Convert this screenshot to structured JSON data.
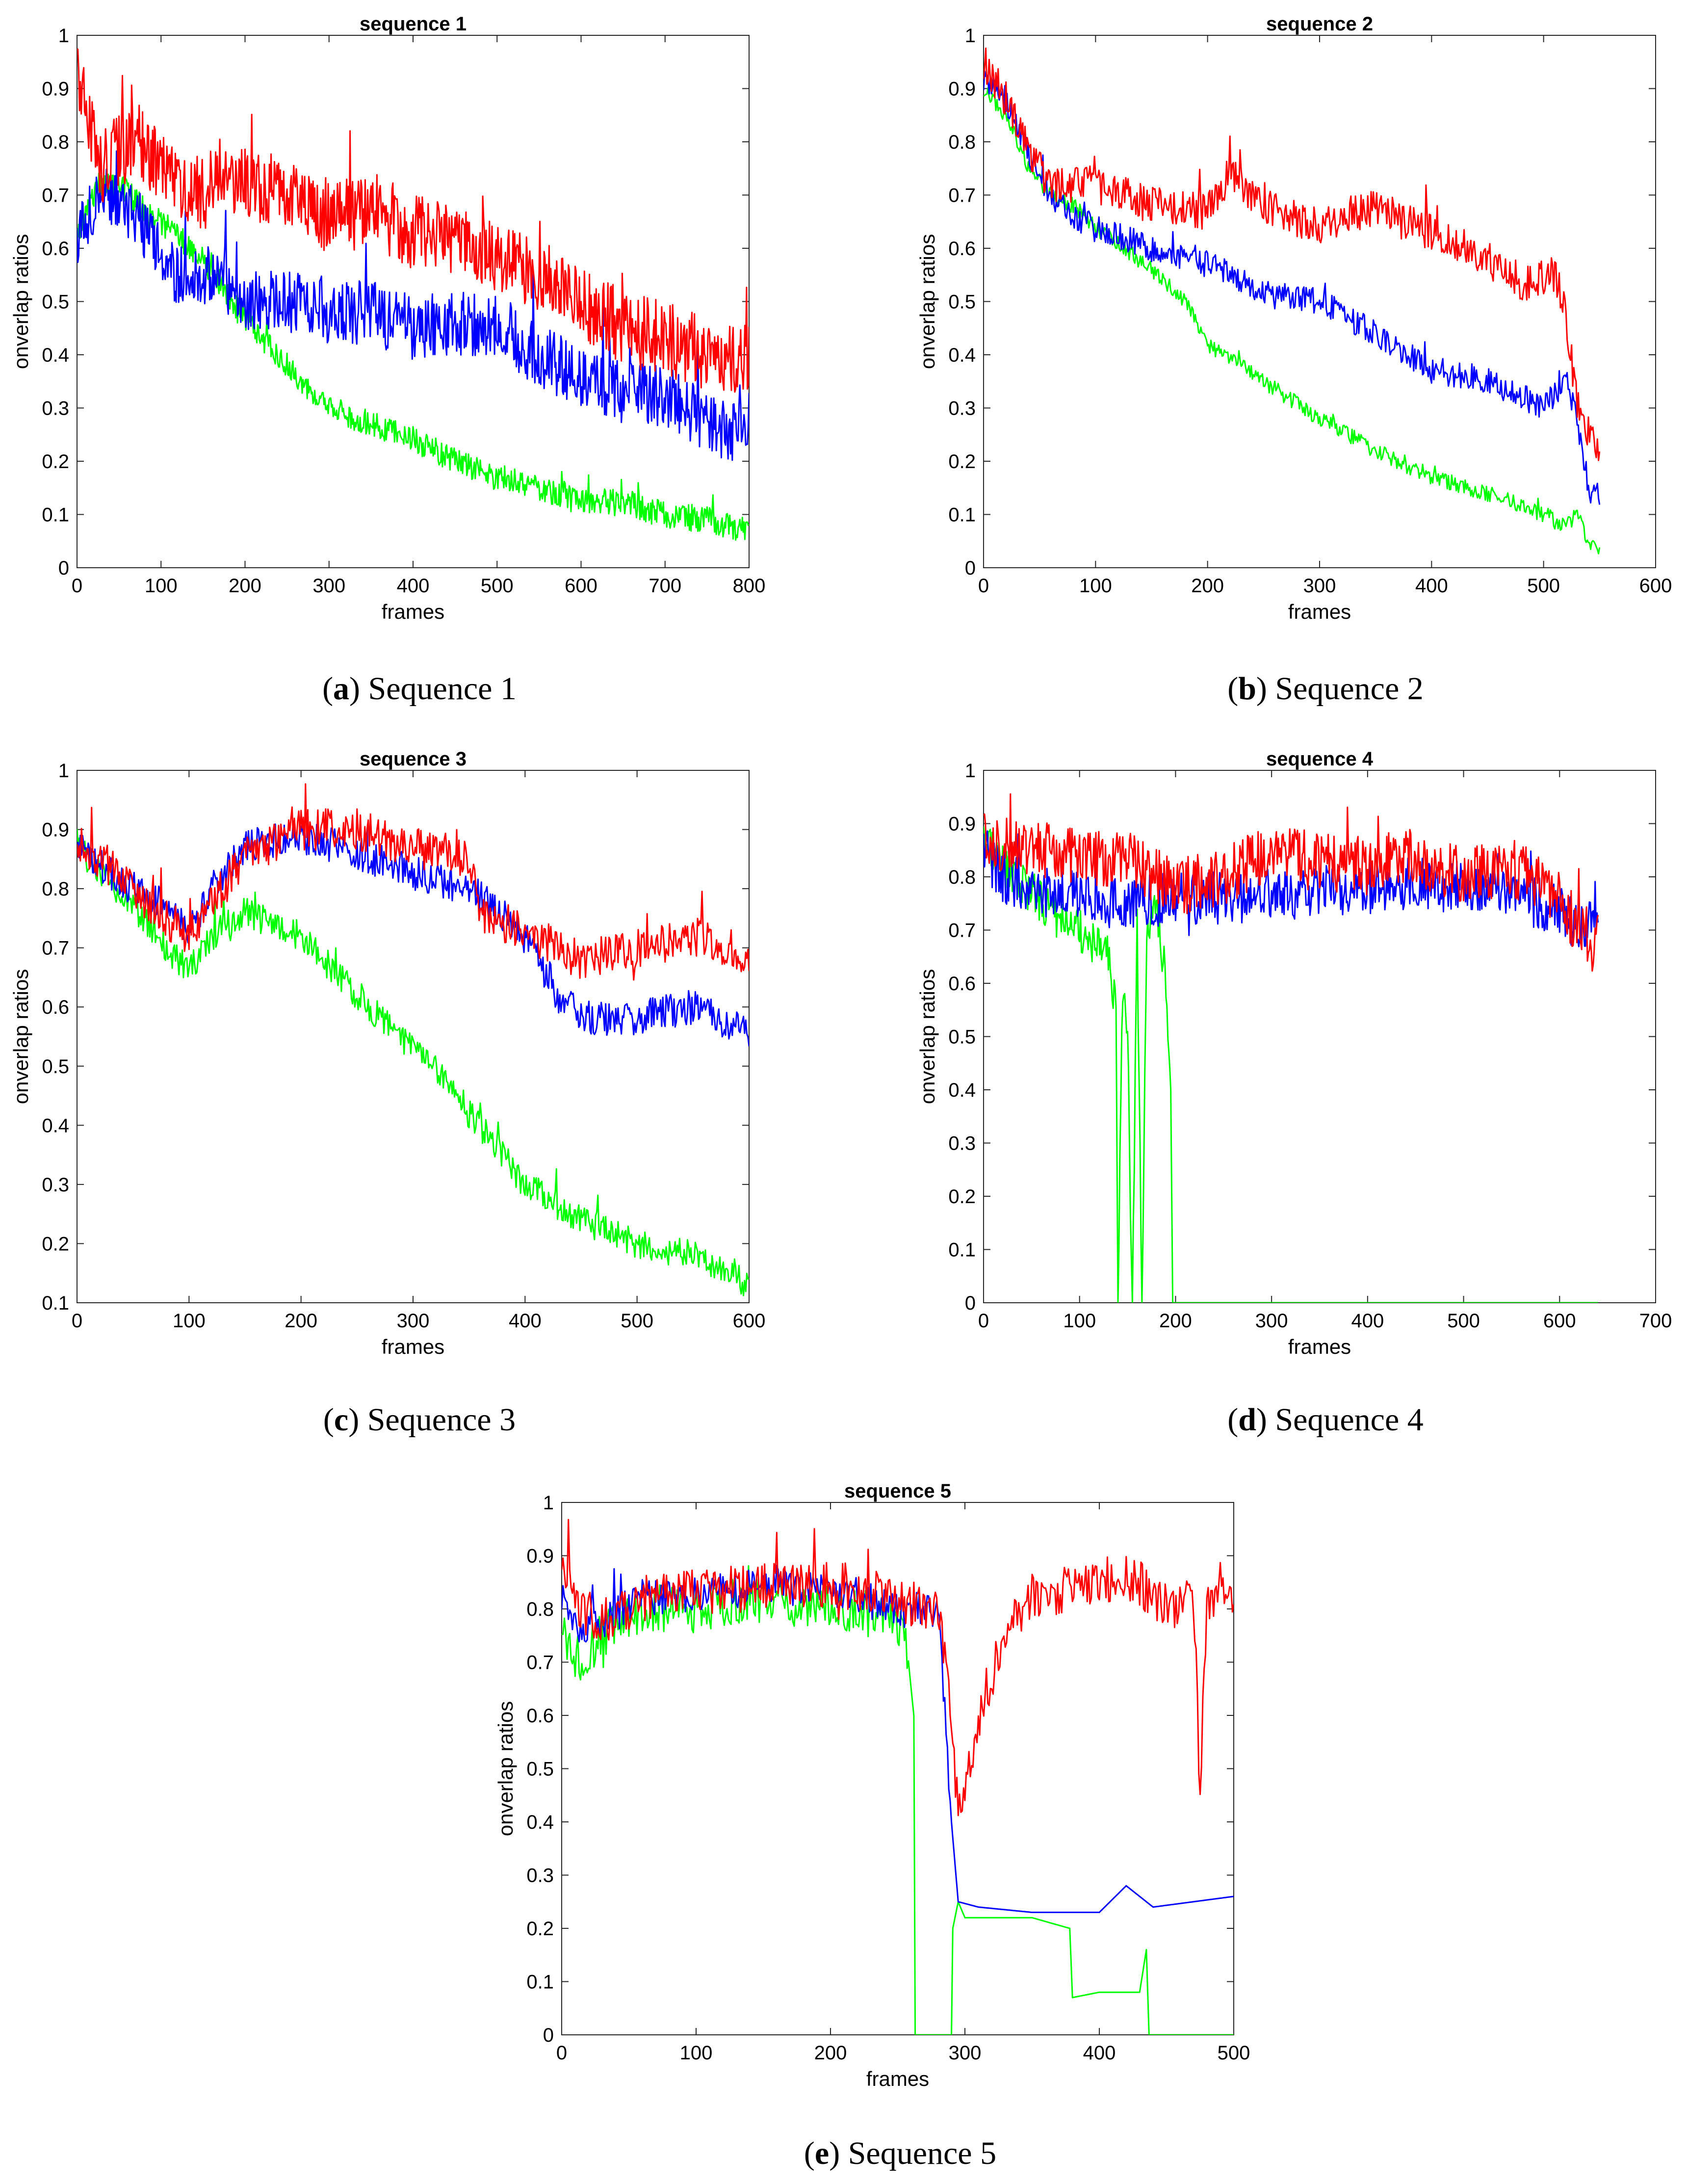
{
  "figure": {
    "series_colors": {
      "red": "#ff0000",
      "blue": "#0000ff",
      "green": "#00ff00"
    }
  },
  "chart_data": [
    {
      "type": "line",
      "title": "sequence 1",
      "caption_letter": "a",
      "caption_text": "Sequence 1",
      "xlabel": "frames",
      "ylabel": "onverlap ratios",
      "xlim": [
        0,
        800
      ],
      "ylim": [
        0,
        1
      ],
      "xticks": [
        0,
        100,
        200,
        300,
        400,
        500,
        600,
        700,
        800
      ],
      "yticks": [
        0,
        0.1,
        0.2,
        0.3,
        0.4,
        0.5,
        0.6,
        0.7,
        0.8,
        0.9,
        1
      ],
      "series": [
        {
          "name": "red",
          "color": "#ff0000",
          "x": [
            0,
            25,
            50,
            75,
            100,
            125,
            150,
            175,
            200,
            250,
            300,
            350,
            400,
            450,
            500,
            550,
            600,
            650,
            700,
            750,
            800
          ],
          "values": [
            0.95,
            0.75,
            0.78,
            0.8,
            0.75,
            0.72,
            0.7,
            0.75,
            0.72,
            0.7,
            0.66,
            0.67,
            0.63,
            0.62,
            0.58,
            0.55,
            0.5,
            0.45,
            0.43,
            0.4,
            0.4
          ],
          "noise": 0.07
        },
        {
          "name": "blue",
          "color": "#0000ff",
          "x": [
            0,
            25,
            50,
            75,
            100,
            125,
            150,
            200,
            250,
            300,
            350,
            400,
            450,
            500,
            550,
            600,
            650,
            700,
            750,
            800
          ],
          "values": [
            0.62,
            0.7,
            0.68,
            0.65,
            0.58,
            0.55,
            0.55,
            0.5,
            0.5,
            0.48,
            0.48,
            0.45,
            0.46,
            0.45,
            0.4,
            0.36,
            0.33,
            0.32,
            0.28,
            0.24
          ],
          "noise": 0.06
        },
        {
          "name": "green",
          "color": "#00ff00",
          "x": [
            0,
            25,
            50,
            75,
            100,
            150,
            200,
            250,
            300,
            350,
            400,
            450,
            500,
            550,
            600,
            650,
            700,
            750,
            800
          ],
          "values": [
            0.62,
            0.72,
            0.72,
            0.68,
            0.65,
            0.58,
            0.47,
            0.38,
            0.3,
            0.27,
            0.24,
            0.2,
            0.17,
            0.15,
            0.13,
            0.12,
            0.1,
            0.09,
            0.07
          ],
          "noise": 0.025
        }
      ]
    },
    {
      "type": "line",
      "title": "sequence 2",
      "caption_letter": "b",
      "caption_text": "Sequence 2",
      "xlabel": "frames",
      "ylabel": "onverlap ratios",
      "xlim": [
        0,
        600
      ],
      "ylim": [
        0,
        1
      ],
      "xticks": [
        0,
        100,
        200,
        300,
        400,
        500,
        600
      ],
      "yticks": [
        0,
        0.1,
        0.2,
        0.3,
        0.4,
        0.5,
        0.6,
        0.7,
        0.8,
        0.9,
        1
      ],
      "series": [
        {
          "name": "red",
          "color": "#ff0000",
          "x": [
            0,
            20,
            40,
            60,
            80,
            100,
            150,
            200,
            220,
            250,
            300,
            350,
            400,
            450,
            480,
            510,
            520,
            530,
            540,
            550
          ],
          "values": [
            0.95,
            0.88,
            0.78,
            0.72,
            0.72,
            0.72,
            0.68,
            0.67,
            0.74,
            0.68,
            0.64,
            0.68,
            0.63,
            0.58,
            0.53,
            0.55,
            0.48,
            0.3,
            0.25,
            0.2
          ],
          "noise": 0.035
        },
        {
          "name": "blue",
          "color": "#0000ff",
          "x": [
            0,
            20,
            40,
            60,
            80,
            100,
            150,
            200,
            250,
            300,
            350,
            400,
            450,
            500,
            520,
            530,
            540,
            550
          ],
          "values": [
            0.92,
            0.88,
            0.78,
            0.7,
            0.66,
            0.64,
            0.6,
            0.57,
            0.52,
            0.5,
            0.44,
            0.37,
            0.35,
            0.3,
            0.35,
            0.28,
            0.15,
            0.12
          ],
          "noise": 0.025
        },
        {
          "name": "green",
          "color": "#00ff00",
          "x": [
            0,
            20,
            40,
            60,
            80,
            100,
            150,
            180,
            200,
            250,
            300,
            350,
            400,
            450,
            500,
            520,
            530,
            540,
            550
          ],
          "values": [
            0.9,
            0.85,
            0.75,
            0.7,
            0.68,
            0.64,
            0.56,
            0.5,
            0.42,
            0.35,
            0.28,
            0.22,
            0.17,
            0.14,
            0.1,
            0.08,
            0.1,
            0.05,
            0.04
          ],
          "noise": 0.015
        }
      ]
    },
    {
      "type": "line",
      "title": "sequence 3",
      "caption_letter": "c",
      "caption_text": "Sequence 3",
      "xlabel": "frames",
      "ylabel": "onverlap ratios",
      "xlim": [
        0,
        600
      ],
      "ylim": [
        0.1,
        1
      ],
      "xticks": [
        0,
        100,
        200,
        300,
        400,
        500,
        600
      ],
      "yticks": [
        0.1,
        0.2,
        0.3,
        0.4,
        0.5,
        0.6,
        0.7,
        0.8,
        0.9,
        1
      ],
      "series": [
        {
          "name": "red",
          "color": "#ff0000",
          "x": [
            0,
            20,
            50,
            80,
            100,
            120,
            150,
            200,
            250,
            300,
            350,
            360,
            400,
            450,
            500,
            550,
            600
          ],
          "values": [
            0.88,
            0.85,
            0.8,
            0.75,
            0.72,
            0.78,
            0.85,
            0.9,
            0.9,
            0.87,
            0.85,
            0.76,
            0.73,
            0.68,
            0.7,
            0.72,
            0.68
          ],
          "noise": 0.035
        },
        {
          "name": "blue",
          "color": "#0000ff",
          "x": [
            0,
            20,
            50,
            80,
            100,
            120,
            150,
            200,
            250,
            300,
            350,
            400,
            430,
            450,
            500,
            550,
            600
          ],
          "values": [
            0.88,
            0.84,
            0.8,
            0.77,
            0.73,
            0.8,
            0.87,
            0.89,
            0.86,
            0.83,
            0.8,
            0.72,
            0.62,
            0.58,
            0.58,
            0.6,
            0.56
          ],
          "noise": 0.03
        },
        {
          "name": "green",
          "color": "#00ff00",
          "x": [
            0,
            20,
            50,
            80,
            100,
            120,
            150,
            200,
            250,
            300,
            330,
            350,
            380,
            400,
            450,
            500,
            550,
            600
          ],
          "values": [
            0.87,
            0.83,
            0.77,
            0.7,
            0.66,
            0.72,
            0.76,
            0.72,
            0.62,
            0.53,
            0.48,
            0.42,
            0.35,
            0.3,
            0.24,
            0.2,
            0.18,
            0.13
          ],
          "noise": 0.025
        }
      ]
    },
    {
      "type": "line",
      "title": "sequence 4",
      "caption_letter": "d",
      "caption_text": "Sequence 4",
      "xlabel": "frames",
      "ylabel": "onverlap ratios",
      "xlim": [
        0,
        700
      ],
      "ylim": [
        0,
        1
      ],
      "xticks": [
        0,
        100,
        200,
        300,
        400,
        500,
        600,
        700
      ],
      "yticks": [
        0,
        0.1,
        0.2,
        0.3,
        0.4,
        0.5,
        0.6,
        0.7,
        0.8,
        0.9,
        1
      ],
      "series": [
        {
          "name": "red",
          "color": "#ff0000",
          "x": [
            0,
            20,
            50,
            100,
            150,
            200,
            250,
            300,
            350,
            400,
            450,
            500,
            550,
            600,
            620,
            640
          ],
          "values": [
            0.88,
            0.86,
            0.85,
            0.84,
            0.83,
            0.78,
            0.8,
            0.85,
            0.83,
            0.82,
            0.84,
            0.8,
            0.82,
            0.76,
            0.7,
            0.68
          ],
          "noise": 0.055
        },
        {
          "name": "blue",
          "color": "#0000ff",
          "x": [
            0,
            20,
            50,
            100,
            150,
            200,
            250,
            300,
            350,
            400,
            450,
            500,
            550,
            600,
            620,
            640
          ],
          "values": [
            0.85,
            0.8,
            0.78,
            0.76,
            0.75,
            0.76,
            0.76,
            0.77,
            0.77,
            0.78,
            0.79,
            0.78,
            0.76,
            0.74,
            0.7,
            0.75
          ],
          "noise": 0.05
        },
        {
          "name": "green",
          "color": "#00ff00",
          "x": [
            0,
            20,
            50,
            80,
            100,
            130,
            138,
            140,
            145,
            150,
            155,
            160,
            165,
            170,
            180,
            190,
            195,
            197,
            200,
            300,
            400,
            500,
            600,
            640
          ],
          "values": [
            0.87,
            0.82,
            0.77,
            0.72,
            0.7,
            0.65,
            0.55,
            0.0,
            0.6,
            0.5,
            0.0,
            0.7,
            0.0,
            0.7,
            0.75,
            0.6,
            0.4,
            0.0,
            0.0,
            0.0,
            0.0,
            0.0,
            0.0,
            0.0
          ],
          "noise": 0.04,
          "noise_until": 193
        }
      ]
    },
    {
      "type": "line",
      "title": "sequence 5",
      "caption_letter": "e",
      "caption_text": "Sequence 5",
      "xlabel": "frames",
      "ylabel": "onverlap ratios",
      "xlim": [
        0,
        500
      ],
      "ylim": [
        0,
        1
      ],
      "xticks": [
        0,
        100,
        200,
        300,
        400,
        500
      ],
      "yticks": [
        0,
        0.1,
        0.2,
        0.3,
        0.4,
        0.5,
        0.6,
        0.7,
        0.8,
        0.9,
        1
      ],
      "series": [
        {
          "name": "red",
          "color": "#ff0000",
          "x": [
            0,
            10,
            30,
            60,
            100,
            150,
            200,
            250,
            280,
            290,
            295,
            310,
            330,
            350,
            400,
            430,
            450,
            470,
            475,
            480,
            500
          ],
          "values": [
            0.9,
            0.8,
            0.78,
            0.82,
            0.83,
            0.84,
            0.85,
            0.82,
            0.8,
            0.6,
            0.4,
            0.6,
            0.75,
            0.82,
            0.86,
            0.85,
            0.8,
            0.82,
            0.45,
            0.82,
            0.84
          ],
          "noise": 0.045
        },
        {
          "name": "blue",
          "color": "#0000ff",
          "x": [
            0,
            10,
            30,
            60,
            100,
            150,
            200,
            250,
            280,
            285,
            290,
            295,
            310,
            350,
            400,
            420,
            440,
            500
          ],
          "values": [
            0.82,
            0.76,
            0.78,
            0.82,
            0.83,
            0.84,
            0.84,
            0.8,
            0.8,
            0.6,
            0.4,
            0.25,
            0.24,
            0.23,
            0.23,
            0.28,
            0.24,
            0.26
          ],
          "noise": 0.035,
          "noise_until": 288
        },
        {
          "name": "green",
          "color": "#00ff00",
          "x": [
            0,
            10,
            30,
            60,
            100,
            150,
            200,
            250,
            258,
            262,
            263,
            290,
            291,
            295,
            300,
            350,
            378,
            380,
            400,
            430,
            435,
            437,
            500
          ],
          "values": [
            0.78,
            0.7,
            0.75,
            0.8,
            0.8,
            0.82,
            0.8,
            0.78,
            0.7,
            0.6,
            0.0,
            0.0,
            0.2,
            0.25,
            0.22,
            0.22,
            0.2,
            0.07,
            0.08,
            0.08,
            0.16,
            0.0,
            0.0
          ],
          "noise": 0.045,
          "noise_until": 258
        }
      ]
    }
  ]
}
